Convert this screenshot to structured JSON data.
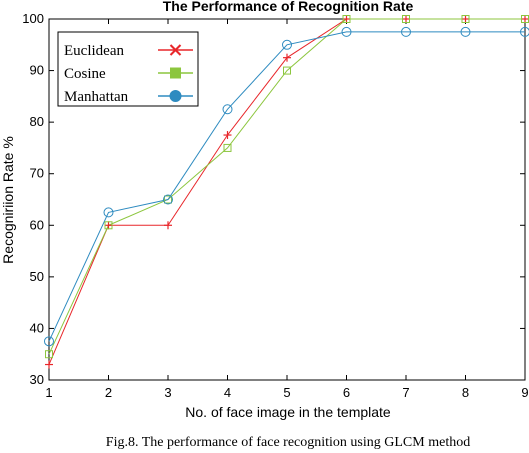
{
  "chart_data": {
    "type": "line",
    "title": "The Performance of Recognition Rate",
    "xlabel": "No. of face image in the template",
    "ylabel": "Recogniriion Rate %",
    "x": [
      1,
      2,
      3,
      4,
      5,
      6,
      7,
      8,
      9
    ],
    "xlim": [
      1,
      9
    ],
    "ylim": [
      30,
      100
    ],
    "xticks": [
      "1",
      "2",
      "3",
      "4",
      "5",
      "6",
      "7",
      "8",
      "9"
    ],
    "yticks": [
      "30",
      "40",
      "50",
      "60",
      "70",
      "80",
      "90",
      "100"
    ],
    "grid": false,
    "legend_position": "top-left",
    "series": [
      {
        "name": "Euclidean",
        "color": "#e8262a",
        "marker": "plus",
        "values": [
          33,
          60,
          60,
          77.5,
          92.5,
          100,
          100,
          100,
          100
        ]
      },
      {
        "name": "Cosine",
        "color": "#8cc63e",
        "marker": "square",
        "values": [
          35,
          60,
          65,
          75,
          90,
          100,
          100,
          100,
          100
        ]
      },
      {
        "name": "Manhattan",
        "color": "#2e8bc0",
        "marker": "circle",
        "values": [
          37.5,
          62.5,
          65,
          82.5,
          95,
          97.5,
          97.5,
          97.5,
          97.5
        ]
      }
    ]
  },
  "caption": "Fig.8. The performance of face recognition using GLCM method"
}
